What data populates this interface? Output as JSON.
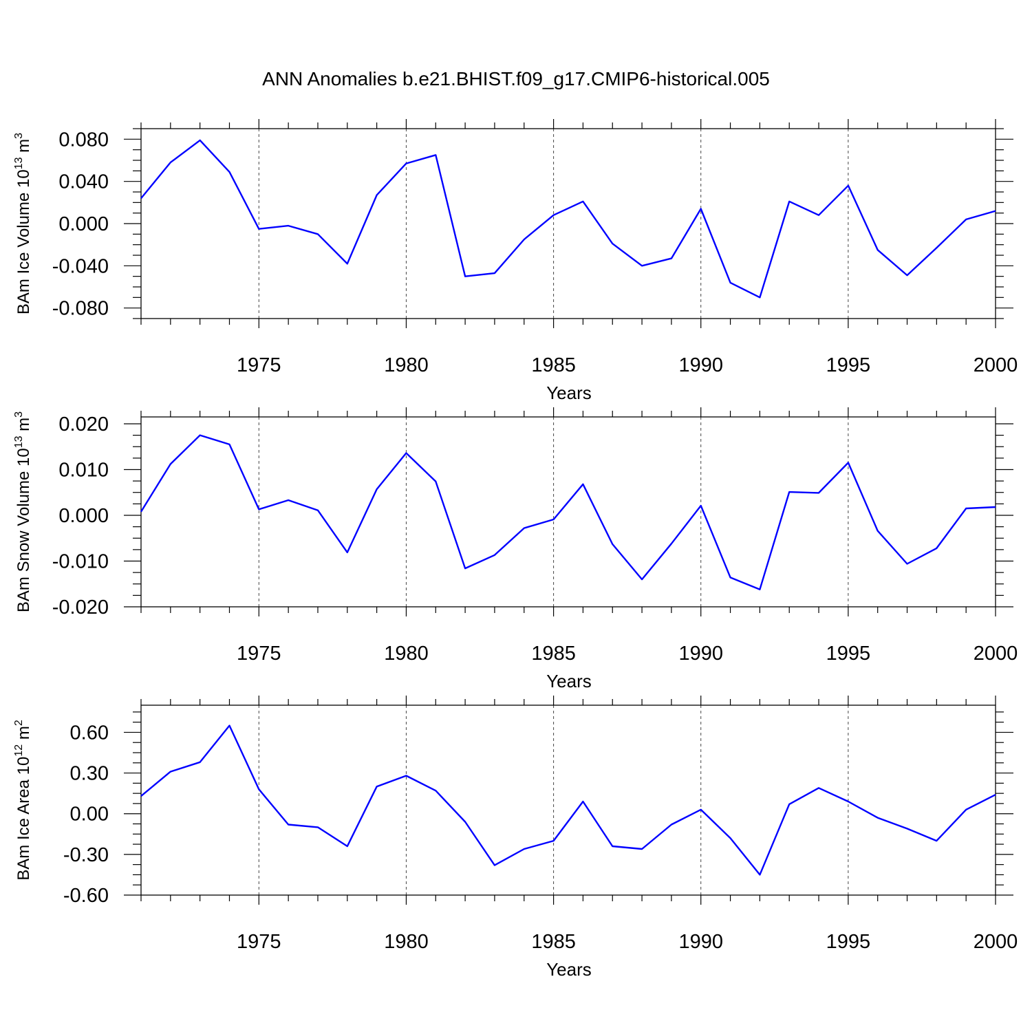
{
  "title": "ANN Anomalies b.e21.BHIST.f09_g17.CMIP6-historical.005",
  "chart_data": [
    {
      "type": "line",
      "ylabel": {
        "prefix": "BAm Ice Volume 10",
        "exp": "13",
        "unit": " m",
        "unit_exp": "3"
      },
      "xlabel": "Years",
      "xlim": [
        1971,
        2000
      ],
      "ylim": [
        -0.09,
        0.09
      ],
      "yticks": [
        -0.08,
        -0.04,
        0.0,
        0.04,
        0.08
      ],
      "ytick_labels": [
        "-0.080",
        "-0.040",
        "0.000",
        "0.040",
        "0.080"
      ],
      "yminor_step": 0.01,
      "xticks": [
        1975,
        1980,
        1985,
        1990,
        1995,
        2000
      ],
      "xtick_labels": [
        "1975",
        "1980",
        "1985",
        "1990",
        "1995",
        "2000"
      ],
      "grid": "vertical dashed at major x ticks",
      "series": [
        {
          "color": "#0000ff",
          "x": [
            1971,
            1972,
            1973,
            1974,
            1975,
            1976,
            1977,
            1978,
            1979,
            1980,
            1981,
            1982,
            1983,
            1984,
            1985,
            1986,
            1987,
            1988,
            1989,
            1990,
            1991,
            1992,
            1993,
            1994,
            1995,
            1996,
            1997,
            1998,
            1999,
            2000
          ],
          "y": [
            0.024,
            0.058,
            0.079,
            0.049,
            -0.005,
            -0.002,
            -0.01,
            -0.038,
            0.027,
            0.057,
            0.065,
            -0.05,
            -0.047,
            -0.015,
            0.008,
            0.021,
            -0.019,
            -0.04,
            -0.033,
            0.014,
            -0.056,
            -0.07,
            0.021,
            0.008,
            0.036,
            -0.025,
            -0.049,
            -0.023,
            0.004,
            0.012
          ]
        }
      ]
    },
    {
      "type": "line",
      "ylabel": {
        "prefix": "BAm Snow Volume 10",
        "exp": "13",
        "unit": " m",
        "unit_exp": "3"
      },
      "xlabel": "Years",
      "xlim": [
        1971,
        2000
      ],
      "ylim": [
        -0.02,
        0.0215
      ],
      "yticks": [
        -0.02,
        -0.01,
        0.0,
        0.01,
        0.02
      ],
      "ytick_labels": [
        "-0.020",
        "-0.010",
        "0.000",
        "0.010",
        "0.020"
      ],
      "yminor_step": 0.0025,
      "xticks": [
        1975,
        1980,
        1985,
        1990,
        1995,
        2000
      ],
      "xtick_labels": [
        "1975",
        "1980",
        "1985",
        "1990",
        "1995",
        "2000"
      ],
      "grid": "vertical dashed at major x ticks",
      "series": [
        {
          "color": "#0000ff",
          "x": [
            1971,
            1972,
            1973,
            1974,
            1975,
            1976,
            1977,
            1978,
            1979,
            1980,
            1981,
            1982,
            1983,
            1984,
            1985,
            1986,
            1987,
            1988,
            1989,
            1990,
            1991,
            1992,
            1993,
            1994,
            1995,
            1996,
            1997,
            1998,
            1999,
            2000
          ],
          "y": [
            0.0008,
            0.0112,
            0.0175,
            0.0155,
            0.0013,
            0.0033,
            0.0011,
            -0.0081,
            0.0057,
            0.0136,
            0.0074,
            -0.0116,
            -0.0087,
            -0.0028,
            -0.0009,
            0.0068,
            -0.0063,
            -0.014,
            -0.0062,
            0.0021,
            -0.0136,
            -0.0162,
            0.0051,
            0.0049,
            0.0115,
            -0.0034,
            -0.0106,
            -0.0072,
            0.0015,
            0.0018
          ]
        }
      ]
    },
    {
      "type": "line",
      "ylabel": {
        "prefix": "BAm Ice Area 10",
        "exp": "12",
        "unit": " m",
        "unit_exp": "2"
      },
      "xlabel": "Years",
      "xlim": [
        1971,
        2000
      ],
      "ylim": [
        -0.6,
        0.8
      ],
      "yticks": [
        -0.6,
        -0.3,
        0.0,
        0.3,
        0.6
      ],
      "ytick_labels": [
        "-0.60",
        "-0.30",
        "0.00",
        "0.30",
        "0.60"
      ],
      "yminor_step": 0.075,
      "xticks": [
        1975,
        1980,
        1985,
        1990,
        1995,
        2000
      ],
      "xtick_labels": [
        "1975",
        "1980",
        "1985",
        "1990",
        "1995",
        "2000"
      ],
      "grid": "vertical dashed at major x ticks",
      "series": [
        {
          "color": "#0000ff",
          "x": [
            1971,
            1972,
            1973,
            1974,
            1975,
            1976,
            1977,
            1978,
            1979,
            1980,
            1981,
            1982,
            1983,
            1984,
            1985,
            1986,
            1987,
            1988,
            1989,
            1990,
            1991,
            1992,
            1993,
            1994,
            1995,
            1996,
            1997,
            1998,
            1999,
            2000
          ],
          "y": [
            0.13,
            0.31,
            0.38,
            0.65,
            0.18,
            -0.08,
            -0.1,
            -0.24,
            0.2,
            0.28,
            0.17,
            -0.06,
            -0.38,
            -0.26,
            -0.2,
            0.09,
            -0.24,
            -0.26,
            -0.08,
            0.03,
            -0.18,
            -0.45,
            0.07,
            0.19,
            0.09,
            -0.03,
            -0.11,
            -0.2,
            0.03,
            0.14
          ]
        }
      ]
    }
  ]
}
